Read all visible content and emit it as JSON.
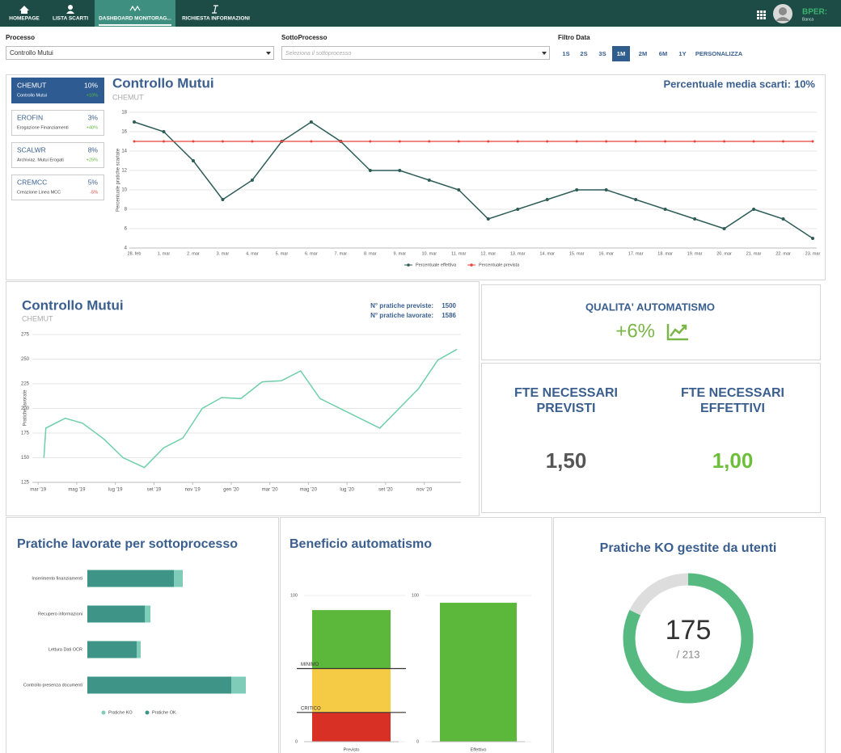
{
  "nav": {
    "items": [
      "HOMEPAGE",
      "LISTA SCARTI",
      "DASHBOARD MONITORAG...",
      "RICHIESTA INFORMAZIONI"
    ],
    "logo": "BPER:",
    "logo_sub": "Banca"
  },
  "filters": {
    "process_label": "Processo",
    "process_value": "Controllo Mutui",
    "subprocess_label": "SottoProcesso",
    "subprocess_placeholder": "Seleziona il sottoprocesso",
    "date_label": "Filtro Data",
    "date_options": [
      "1S",
      "2S",
      "3S",
      "1M",
      "2M",
      "6M",
      "1Y",
      "PERSONALIZZA"
    ],
    "date_active_index": 3
  },
  "process_list": {
    "active_index": 0,
    "items": [
      {
        "code": "CHEMUT",
        "percent": "10%",
        "name": "Controllo Mutui",
        "delta": "+10%"
      },
      {
        "code": "EROFIN",
        "percent": "3%",
        "name": "Erogazione Finanziamenti",
        "delta": "+40%"
      },
      {
        "code": "SCALWR",
        "percent": "8%",
        "name": "Archiviaz. Mutui Erogati",
        "delta": "+25%"
      },
      {
        "code": "CREMCC",
        "percent": "5%",
        "name": "Creazione Linea MCC",
        "delta": "-5%"
      }
    ]
  },
  "kpis": {
    "quality_title": "QUALITA' AUTOMATISMO",
    "quality_value": "+6%",
    "fte": [
      {
        "title": [
          "FTE NECESSARI",
          "PREVISTI"
        ],
        "value": "1,50"
      },
      {
        "title": [
          "FTE NECESSARI",
          "EFFETTIVI"
        ],
        "value": "1,00"
      }
    ]
  },
  "chart_data": [
    {
      "type": "line",
      "title": "Controllo Mutui",
      "subtitle": "CHEMUT",
      "summary_label": "Percentuale media scarti:",
      "summary_value": "10%",
      "y_label": "Percentuale pratiche scartate",
      "categories": [
        "28. feb",
        "1. mar",
        "2. mar",
        "3. mar",
        "4. mar",
        "5. mar",
        "6. mar",
        "7. mar",
        "8. mar",
        "9. mar",
        "10. mar",
        "11. mar",
        "12. mar",
        "13. mar",
        "14. mar",
        "15. mar",
        "16. mar",
        "17. mar",
        "18. mar",
        "19. mar",
        "20. mar",
        "21. mar",
        "22. mar",
        "23. mar"
      ],
      "series": [
        {
          "name": "Percentuale effettiva",
          "color": "#2d5c57",
          "values": [
            17,
            16,
            13,
            9,
            11,
            15,
            17,
            15,
            12,
            12,
            11,
            10,
            7,
            8,
            9,
            10,
            10,
            9,
            8,
            7,
            6,
            8,
            7,
            5
          ]
        },
        {
          "name": "Percentuale prevista",
          "color": "#e8453c",
          "values": [
            15,
            15,
            15,
            15,
            15,
            15,
            15,
            15,
            15,
            15,
            15,
            15,
            15,
            15,
            15,
            15,
            15,
            15,
            15,
            15,
            15,
            15,
            15,
            15
          ]
        }
      ],
      "ylim": [
        4,
        18
      ],
      "yticks": [
        4,
        6,
        8,
        10,
        12,
        14,
        16,
        18
      ],
      "grid": true,
      "legend": "bottom"
    },
    {
      "type": "line",
      "title": "Controllo Mutui",
      "subtitle": "CHEMUT",
      "stats": [
        {
          "label": "N° pratiche previste:",
          "value": 1500
        },
        {
          "label": "N° pratiche lavorate:",
          "value": 1586
        }
      ],
      "y_label": "Pratiche lavorate",
      "x": [
        0.3,
        0.4,
        1.4,
        2.3,
        3.4,
        4.4,
        5.5,
        6.5,
        7.5,
        8.5,
        9.5,
        10.5,
        11.6,
        12.6,
        13.6,
        14.6,
        17.7,
        19.7,
        20.7,
        21.7
      ],
      "series": [
        {
          "color": "#6fcfa9",
          "values": [
            150,
            180,
            190,
            185,
            169,
            150,
            140,
            160,
            170,
            200,
            211,
            210,
            227,
            228,
            238,
            210,
            180,
            220,
            249,
            260
          ]
        }
      ],
      "xlim": [
        -0.3,
        21.9
      ],
      "xticks": [
        {
          "value": 0,
          "label": "mar '19"
        },
        {
          "value": 2,
          "label": "mag '19"
        },
        {
          "value": 4,
          "label": "lug '19"
        },
        {
          "value": 6,
          "label": "set '19"
        },
        {
          "value": 8,
          "label": "nov '19"
        },
        {
          "value": 10,
          "label": "gen '20"
        },
        {
          "value": 12,
          "label": "mar '20"
        },
        {
          "value": 14,
          "label": "mag '20"
        },
        {
          "value": 16,
          "label": "lug '20"
        },
        {
          "value": 18,
          "label": "set '20"
        },
        {
          "value": 20,
          "label": "nov '20"
        }
      ],
      "ylim": [
        125,
        275
      ],
      "yticks": [
        125,
        150,
        175,
        200,
        225,
        250,
        275
      ],
      "grid": true
    },
    {
      "type": "hbar",
      "title": "Pratiche lavorate per sottoprocesso",
      "categories": [
        "Inserimento finanziamenti",
        "Recupero informazioni",
        "Lettura Dati OCR",
        "Controllo presenza documenti"
      ],
      "series": [
        {
          "name": "Pratiche KO",
          "color": "#7fcdb8",
          "values": [
            11,
            7,
            5,
            18
          ]
        },
        {
          "name": "Pratiche OK",
          "color": "#3e9487",
          "values": [
            107,
            71,
            61,
            178
          ]
        }
      ],
      "stacked": true,
      "xlim": [
        0,
        220
      ],
      "legend": "bottom"
    },
    {
      "type": "stacked_bar",
      "title": "Beneficio automatismo",
      "categories": [
        "Previsto"
      ],
      "series": [
        {
          "color": "#d93025",
          "values": [
            20
          ]
        },
        {
          "color": "#f5cb45",
          "values": [
            30
          ]
        },
        {
          "color": "#5cb83a",
          "values": [
            40
          ]
        }
      ],
      "ylim": [
        0,
        100
      ],
      "yticks": [
        0,
        100
      ],
      "reference_lines": [
        {
          "label": "MINIMO",
          "value": 50
        },
        {
          "label": "CRITICO",
          "value": 20
        }
      ]
    },
    {
      "type": "bar",
      "categories": [
        "Effettivo"
      ],
      "values": [
        95
      ],
      "color": "#5cb83a",
      "ylim": [
        0,
        100
      ],
      "yticks": [
        0,
        100
      ]
    },
    {
      "type": "donut",
      "title": "Pratiche KO gestite da utenti",
      "value": 175,
      "total": {
        "value": 213,
        "label": "/ 213"
      },
      "color": "#55b980",
      "track_color": "#dddddd"
    }
  ]
}
